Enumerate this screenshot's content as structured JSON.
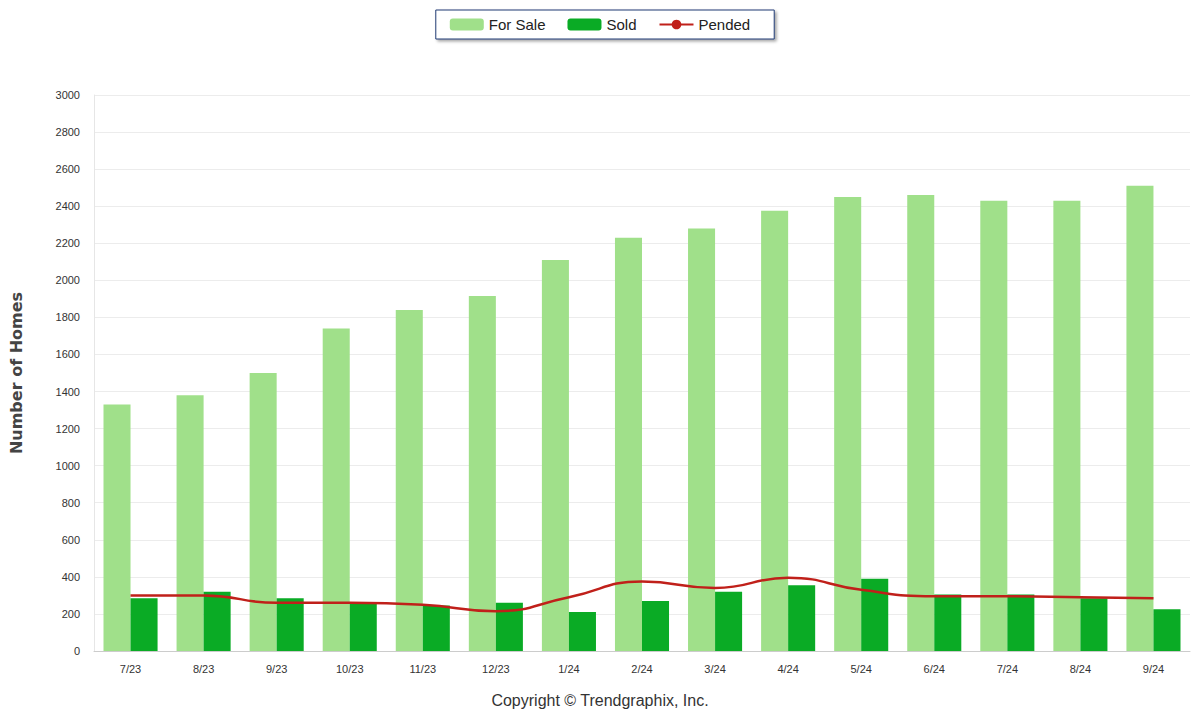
{
  "chart_data": {
    "type": "bar",
    "caption": "Copyright © Trendgraphix, Inc.",
    "y_label": "Number of Homes",
    "categories": [
      "7/23",
      "8/23",
      "9/23",
      "10/23",
      "11/23",
      "12/23",
      "1/24",
      "2/24",
      "3/24",
      "4/24",
      "5/24",
      "6/24",
      "7/24",
      "8/24",
      "9/24"
    ],
    "series": [
      {
        "name": "For Sale",
        "type": "bar",
        "color": "#a0e08a",
        "values": [
          1330,
          1380,
          1500,
          1740,
          1840,
          1915,
          2110,
          2230,
          2280,
          2375,
          2450,
          2460,
          2430,
          2430,
          2510
        ]
      },
      {
        "name": "Sold",
        "type": "bar",
        "color": "#0aab25",
        "values": [
          285,
          320,
          285,
          255,
          245,
          260,
          210,
          270,
          320,
          355,
          390,
          305,
          305,
          285,
          225
        ]
      },
      {
        "name": "Pended",
        "type": "line",
        "color": "#c0201a",
        "values": [
          300,
          300,
          260,
          260,
          250,
          215,
          290,
          375,
          340,
          395,
          330,
          295,
          295,
          290,
          285
        ]
      }
    ],
    "ylim": [
      0,
      3000
    ],
    "yticks": [
      0,
      200,
      400,
      600,
      800,
      1000,
      1200,
      1400,
      1600,
      1800,
      2000,
      2200,
      2400,
      2600,
      2800,
      3000
    ],
    "grid": true,
    "legend": "top"
  }
}
